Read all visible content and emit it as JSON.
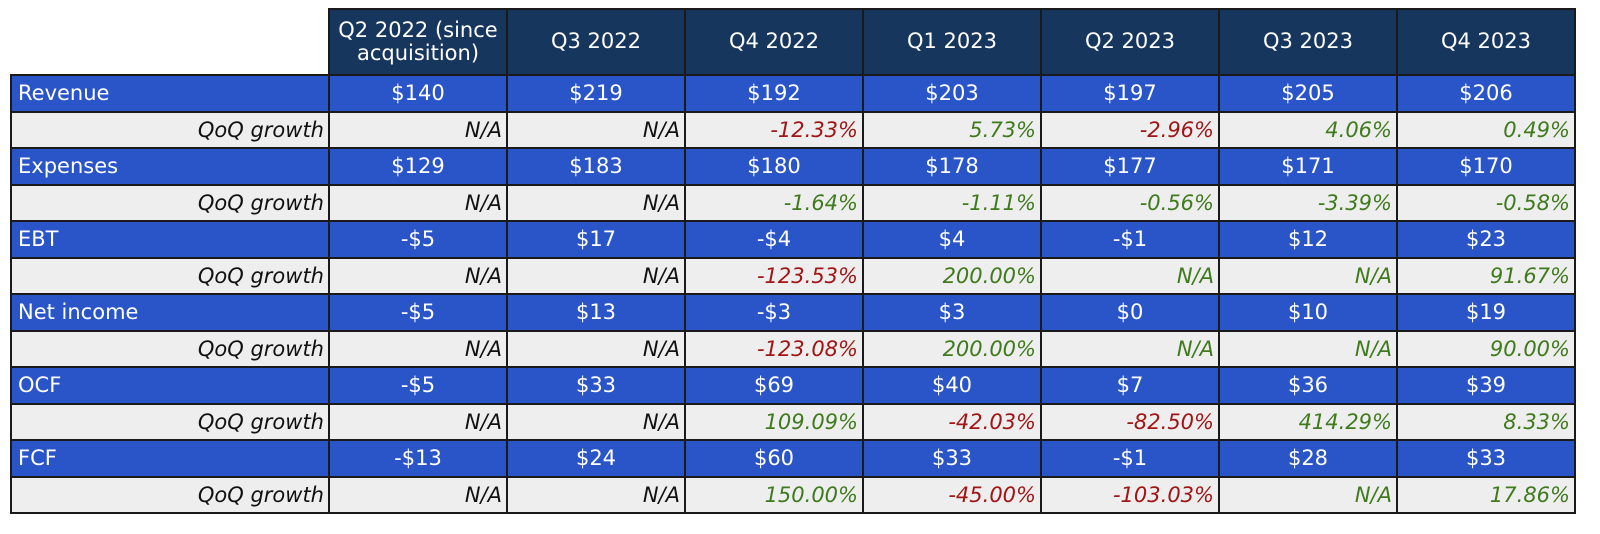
{
  "header": {
    "quarters": [
      "Q2 2022 (since acquisition)",
      "Q3 2022",
      "Q4 2022",
      "Q1 2023",
      "Q2 2023",
      "Q3 2023",
      "Q4 2023"
    ]
  },
  "growth_label": "QoQ growth",
  "colors": {
    "header_bg": "#17365d",
    "metric_bg": "#2a55c8",
    "growth_bg": "#eeeeee",
    "positive": "#3f7a1d",
    "negative": "#a01515",
    "neutral": "#111111"
  },
  "metrics": [
    {
      "label": "Revenue",
      "values": [
        "$140",
        "$219",
        "$192",
        "$203",
        "$197",
        "$205",
        "$206"
      ],
      "growth": [
        "N/A",
        "N/A",
        "-12.33%",
        "5.73%",
        "-2.96%",
        "4.06%",
        "0.49%"
      ],
      "growth_tone": [
        "neutral",
        "neutral",
        "neg",
        "pos",
        "neg",
        "pos",
        "pos"
      ]
    },
    {
      "label": "Expenses",
      "values": [
        "$129",
        "$183",
        "$180",
        "$178",
        "$177",
        "$171",
        "$170"
      ],
      "growth": [
        "N/A",
        "N/A",
        "-1.64%",
        "-1.11%",
        "-0.56%",
        "-3.39%",
        "-0.58%"
      ],
      "growth_tone": [
        "neutral",
        "neutral",
        "pos",
        "pos",
        "pos",
        "pos",
        "pos"
      ]
    },
    {
      "label": "EBT",
      "values": [
        "-$5",
        "$17",
        "-$4",
        "$4",
        "-$1",
        "$12",
        "$23"
      ],
      "growth": [
        "N/A",
        "N/A",
        "-123.53%",
        "200.00%",
        "N/A",
        "N/A",
        "91.67%"
      ],
      "growth_tone": [
        "neutral",
        "neutral",
        "neg",
        "pos",
        "pos",
        "pos",
        "pos"
      ]
    },
    {
      "label": "Net income",
      "values": [
        "-$5",
        "$13",
        "-$3",
        "$3",
        "$0",
        "$10",
        "$19"
      ],
      "growth": [
        "N/A",
        "N/A",
        "-123.08%",
        "200.00%",
        "N/A",
        "N/A",
        "90.00%"
      ],
      "growth_tone": [
        "neutral",
        "neutral",
        "neg",
        "pos",
        "pos",
        "pos",
        "pos"
      ]
    },
    {
      "label": "OCF",
      "values": [
        "-$5",
        "$33",
        "$69",
        "$40",
        "$7",
        "$36",
        "$39"
      ],
      "growth": [
        "N/A",
        "N/A",
        "109.09%",
        "-42.03%",
        "-82.50%",
        "414.29%",
        "8.33%"
      ],
      "growth_tone": [
        "neutral",
        "neutral",
        "pos",
        "neg",
        "neg",
        "pos",
        "pos"
      ]
    },
    {
      "label": "FCF",
      "values": [
        "-$13",
        "$24",
        "$60",
        "$33",
        "-$1",
        "$28",
        "$33"
      ],
      "growth": [
        "N/A",
        "N/A",
        "150.00%",
        "-45.00%",
        "-103.03%",
        "N/A",
        "17.86%"
      ],
      "growth_tone": [
        "neutral",
        "neutral",
        "pos",
        "neg",
        "neg",
        "pos",
        "pos"
      ]
    }
  ]
}
